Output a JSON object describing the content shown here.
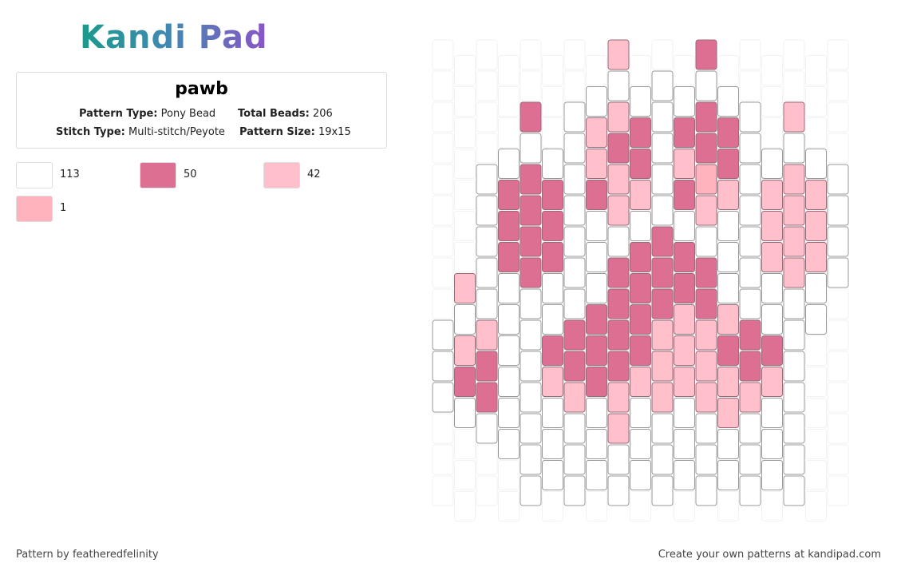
{
  "logo": "Kandi Pad",
  "pattern": {
    "title": "pawb",
    "fields": [
      {
        "label": "Pattern Type:",
        "value": "Pony Bead"
      },
      {
        "label": "Total Beads:",
        "value": "206"
      },
      {
        "label": "Stitch Type:",
        "value": "Multi-stitch/Peyote"
      },
      {
        "label": "Pattern Size:",
        "value": "19x15"
      }
    ]
  },
  "legend": [
    {
      "color": "#ffffff",
      "count": 113
    },
    {
      "color": "#dd7092",
      "count": 50
    },
    {
      "color": "#ffc0cb",
      "count": 42
    },
    {
      "color": "#ffb3bd",
      "count": 1
    }
  ],
  "footer": {
    "left": "Pattern by featheredfelinity",
    "right": "Create your own patterns at kandipad.com"
  }
}
